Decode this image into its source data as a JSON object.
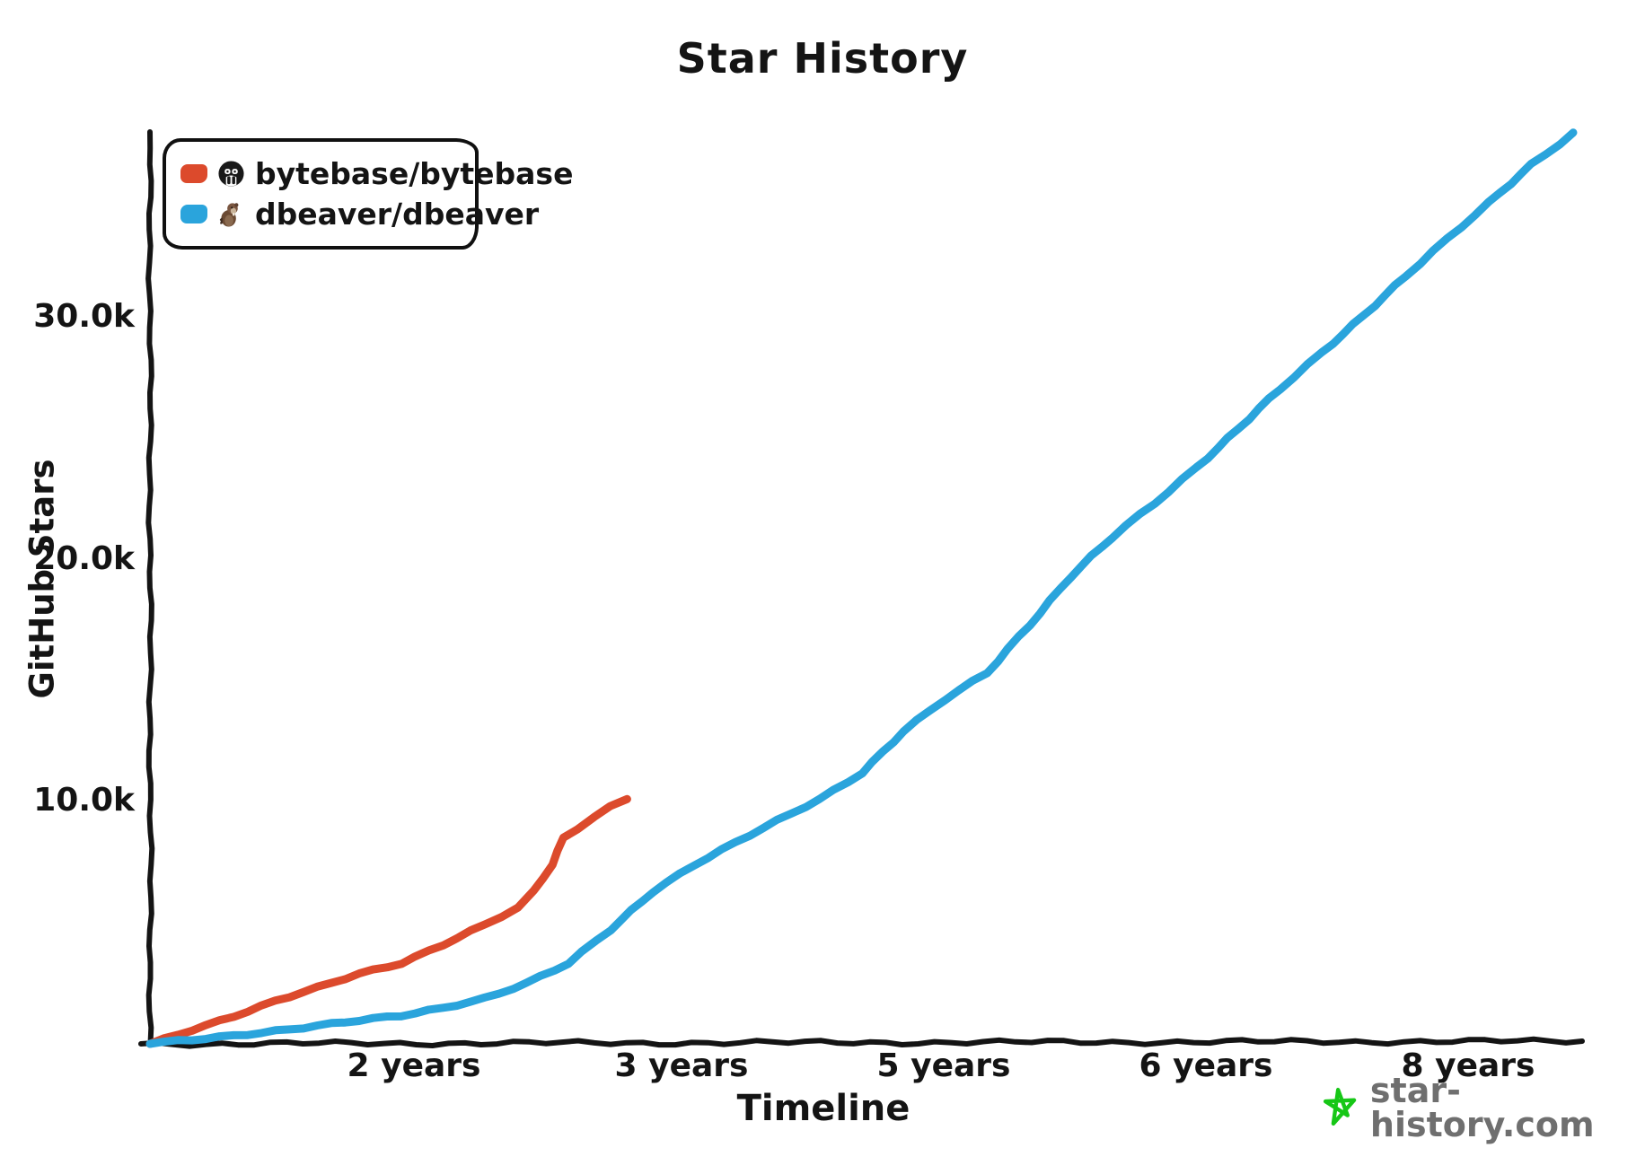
{
  "title": "Star History",
  "legend": {
    "items": [
      {
        "label": "bytebase/bytebase",
        "color": "#dc4a2c",
        "avatar": "bytebase-logo"
      },
      {
        "label": "dbeaver/dbeaver",
        "color": "#2aa4dc",
        "avatar": "dbeaver-logo"
      }
    ]
  },
  "axes": {
    "y_label": "GitHub Stars",
    "x_label": "Timeline",
    "y_ticks": [
      {
        "label": "30.0k",
        "value": 30000
      },
      {
        "label": "20.0k",
        "value": 20000
      },
      {
        "label": "10.0k",
        "value": 10000
      }
    ],
    "x_ticks": [
      {
        "label": "2 years",
        "years": 1.58
      },
      {
        "label": "3 years",
        "years": 3.17
      },
      {
        "label": "5 years",
        "years": 4.74
      },
      {
        "label": "6 years",
        "years": 6.31
      },
      {
        "label": "8 years",
        "years": 7.87
      }
    ]
  },
  "watermark": {
    "text": "star-history.com",
    "star_color": "#16c716",
    "text_color": "#6f6f6f"
  },
  "chart_data": {
    "type": "line",
    "title": "Star History",
    "xlabel": "Timeline",
    "ylabel": "GitHub Stars",
    "x_unit": "years since repo creation",
    "xlim": [
      0,
      8.6
    ],
    "ylim": [
      0,
      38500
    ],
    "grid": false,
    "legend_position": "top-left",
    "x_tick_positions_years": [
      1.58,
      3.17,
      4.74,
      6.31,
      7.87
    ],
    "x_tick_labels": [
      "2 years",
      "3 years",
      "5 years",
      "6 years",
      "8 years"
    ],
    "y_tick_values": [
      10000,
      20000,
      30000
    ],
    "series": [
      {
        "name": "bytebase/bytebase",
        "color": "#dc4a2c",
        "points": [
          [
            0,
            0
          ],
          [
            0.25,
            600
          ],
          [
            0.5,
            1150
          ],
          [
            0.75,
            1750
          ],
          [
            1.0,
            2300
          ],
          [
            1.25,
            2900
          ],
          [
            1.5,
            3350
          ],
          [
            1.75,
            4100
          ],
          [
            2.0,
            4900
          ],
          [
            2.2,
            5600
          ],
          [
            2.3,
            6300
          ],
          [
            2.4,
            7400
          ],
          [
            2.47,
            8500
          ],
          [
            2.55,
            8900
          ],
          [
            2.65,
            9400
          ],
          [
            2.75,
            9800
          ],
          [
            2.85,
            10100
          ]
        ]
      },
      {
        "name": "dbeaver/dbeaver",
        "color": "#2aa4dc",
        "points": [
          [
            0,
            0
          ],
          [
            0.25,
            150
          ],
          [
            0.5,
            350
          ],
          [
            0.75,
            550
          ],
          [
            1.0,
            750
          ],
          [
            1.25,
            950
          ],
          [
            1.5,
            1150
          ],
          [
            1.75,
            1500
          ],
          [
            2.0,
            1900
          ],
          [
            2.25,
            2500
          ],
          [
            2.5,
            3300
          ],
          [
            2.75,
            4700
          ],
          [
            3.0,
            6300
          ],
          [
            3.25,
            7400
          ],
          [
            3.5,
            8300
          ],
          [
            3.75,
            9200
          ],
          [
            4.0,
            10100
          ],
          [
            4.25,
            11200
          ],
          [
            4.5,
            12900
          ],
          [
            4.75,
            14200
          ],
          [
            5.0,
            15300
          ],
          [
            5.25,
            17300
          ],
          [
            5.5,
            19300
          ],
          [
            5.75,
            20900
          ],
          [
            6.0,
            22300
          ],
          [
            6.25,
            23800
          ],
          [
            6.5,
            25400
          ],
          [
            6.75,
            27000
          ],
          [
            7.0,
            28500
          ],
          [
            7.25,
            30100
          ],
          [
            7.5,
            31700
          ],
          [
            7.75,
            33200
          ],
          [
            8.0,
            34700
          ],
          [
            8.25,
            36300
          ],
          [
            8.5,
            37600
          ]
        ]
      }
    ]
  }
}
